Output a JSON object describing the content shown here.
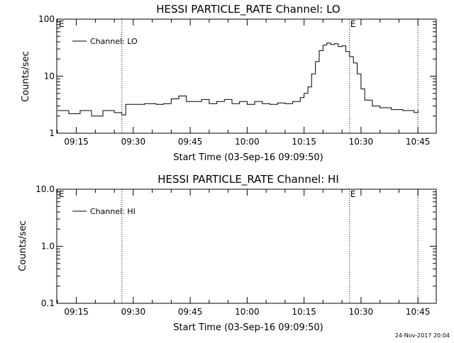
{
  "chart_data": [
    {
      "type": "line",
      "title": "HESSI PARTICLE_RATE Channel: LO",
      "xlabel": "Start Time (03-Sep-16 09:09:50)",
      "ylabel": "Counts/sec",
      "yscale": "log",
      "ylim": [
        1,
        100
      ],
      "xlim": [
        "09:09:50",
        "10:49:50"
      ],
      "x_ticks": [
        "09:15",
        "09:30",
        "09:45",
        "10:00",
        "10:15",
        "10:30",
        "10:45"
      ],
      "y_ticks": [
        "1",
        "10",
        "100"
      ],
      "legend": {
        "entries": [
          "Channel: LO"
        ],
        "position": "top-left"
      },
      "markers": [
        {
          "time": "09:27:00",
          "label": ""
        },
        {
          "time": "10:27:00",
          "label": "E"
        },
        {
          "time": "10:45:00",
          "label": ""
        }
      ],
      "corner_label": "E",
      "series": [
        {
          "name": "Channel: LO",
          "x": [
            "09:10",
            "09:13",
            "09:16",
            "09:19",
            "09:22",
            "09:25",
            "09:27",
            "09:28",
            "09:30",
            "09:33",
            "09:36",
            "09:38",
            "09:40",
            "09:42",
            "09:44",
            "09:46",
            "09:48",
            "09:50",
            "09:52",
            "09:54",
            "09:56",
            "09:58",
            "10:00",
            "10:02",
            "10:04",
            "10:06",
            "10:08",
            "10:10",
            "10:12",
            "10:14",
            "10:15",
            "10:16",
            "10:17",
            "10:18",
            "10:19",
            "10:20",
            "10:21",
            "10:22",
            "10:23",
            "10:24",
            "10:25",
            "10:26",
            "10:27",
            "10:28",
            "10:29",
            "10:30",
            "10:31",
            "10:33",
            "10:35",
            "10:38",
            "10:41",
            "10:44",
            "10:45"
          ],
          "y": [
            2.5,
            2.2,
            2.5,
            2.0,
            2.5,
            2.3,
            2.1,
            3.2,
            3.2,
            3.3,
            3.2,
            3.3,
            4.0,
            4.5,
            3.6,
            3.6,
            3.9,
            3.3,
            3.6,
            3.9,
            3.3,
            3.6,
            3.2,
            3.6,
            3.3,
            3.2,
            3.4,
            3.3,
            3.6,
            4.2,
            5.0,
            6.5,
            11,
            18,
            28,
            35,
            38,
            36,
            37,
            33,
            34,
            27,
            22,
            17,
            11,
            6,
            3.8,
            3.0,
            2.8,
            2.6,
            2.5,
            2.3,
            2.6
          ]
        }
      ]
    },
    {
      "type": "line",
      "title": "HESSI PARTICLE_RATE Channel: HI",
      "xlabel": "Start Time (03-Sep-16 09:09:50)",
      "ylabel": "Counts/sec",
      "yscale": "log",
      "ylim": [
        0.1,
        10
      ],
      "xlim": [
        "09:09:50",
        "10:49:50"
      ],
      "x_ticks": [
        "09:15",
        "09:30",
        "09:45",
        "10:00",
        "10:15",
        "10:30",
        "10:45"
      ],
      "y_ticks": [
        "0.1",
        "1.0",
        "10.0"
      ],
      "legend": {
        "entries": [
          "Channel: HI"
        ],
        "position": "top-left"
      },
      "markers": [
        {
          "time": "09:27:00",
          "label": ""
        },
        {
          "time": "10:27:00",
          "label": "E"
        },
        {
          "time": "10:45:00",
          "label": ""
        }
      ],
      "corner_label": "E",
      "series": [
        {
          "name": "Channel: HI",
          "x": [],
          "y": []
        }
      ]
    }
  ],
  "footer": {
    "timestamp": "24-Nov-2017 20:04"
  }
}
